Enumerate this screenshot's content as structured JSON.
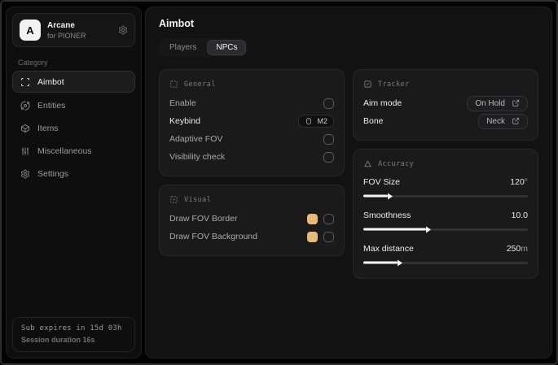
{
  "colors": {
    "fov_swatch": "#e6ba78"
  },
  "sidebar": {
    "brand": {
      "logo_letter": "A",
      "title": "Arcane",
      "subtitle": "for PIONER"
    },
    "category_label": "Category",
    "items": [
      {
        "label": "Aimbot",
        "icon": "scan-icon",
        "active": true
      },
      {
        "label": "Entities",
        "icon": "orbit-icon",
        "active": false
      },
      {
        "label": "Items",
        "icon": "box-icon",
        "active": false
      },
      {
        "label": "Miscellaneous",
        "icon": "sliders-icon",
        "active": false
      },
      {
        "label": "Settings",
        "icon": "gear-icon",
        "active": false
      }
    ],
    "footer": {
      "sub_expires": "Sub expires in 15d 03h",
      "session_duration": "Session duration 16s"
    }
  },
  "main": {
    "title": "Aimbot",
    "tabs": [
      {
        "label": "Players",
        "active": false
      },
      {
        "label": "NPCs",
        "active": true
      }
    ],
    "general": {
      "title": "General",
      "rows": [
        {
          "label": "Enable",
          "control": "checkbox",
          "checked": false
        },
        {
          "label": "Keybind",
          "control": "keybind",
          "value": "M2"
        },
        {
          "label": "Adaptive FOV",
          "control": "checkbox",
          "checked": false
        },
        {
          "label": "Visibility check",
          "control": "checkbox",
          "checked": false
        }
      ]
    },
    "visual": {
      "title": "Visual",
      "rows": [
        {
          "label": "Draw FOV Border",
          "swatch": "#e6ba78",
          "checked": false
        },
        {
          "label": "Draw FOV Background",
          "swatch": "#e6ba78",
          "checked": false
        }
      ]
    },
    "tracker": {
      "title": "Tracker",
      "rows": [
        {
          "label": "Aim mode",
          "value": "On Hold"
        },
        {
          "label": "Bone",
          "value": "Neck"
        }
      ]
    },
    "accuracy": {
      "title": "Accuracy",
      "rows": [
        {
          "label": "FOV Size",
          "value": "120",
          "unit": "°",
          "pct": 15
        },
        {
          "label": "Smoothness",
          "value": "10.0",
          "unit": "",
          "pct": 38
        },
        {
          "label": "Max distance",
          "value": "250",
          "unit": "m",
          "pct": 21
        }
      ]
    }
  }
}
